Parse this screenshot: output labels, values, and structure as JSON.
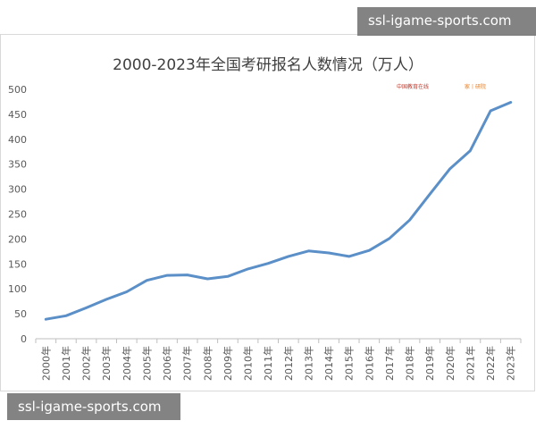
{
  "watermark": {
    "text": "ssl-igame-sports.com"
  },
  "logos": {
    "left_text": "中国教育在线",
    "right_text": "家丨研院"
  },
  "chart_data": {
    "type": "line",
    "title": "2000-2023年全国考研报名人数情况（万人）",
    "xlabel": "",
    "ylabel": "",
    "ylim": [
      0,
      500
    ],
    "yticks": [
      0,
      50,
      100,
      150,
      200,
      250,
      300,
      350,
      400,
      450,
      500
    ],
    "grid": false,
    "categories": [
      "2000年",
      "2001年",
      "2002年",
      "2003年",
      "2004年",
      "2005年",
      "2006年",
      "2007年",
      "2008年",
      "2009年",
      "2010年",
      "2011年",
      "2012年",
      "2013年",
      "2014年",
      "2015年",
      "2016年",
      "2017年",
      "2018年",
      "2019年",
      "2020年",
      "2021年",
      "2022年",
      "2023年"
    ],
    "series": [
      {
        "name": "",
        "color": "#5b8fc7",
        "values": [
          39,
          46,
          62,
          79,
          94,
          117,
          127,
          128,
          120,
          125,
          140,
          151,
          165,
          176,
          172,
          165,
          177,
          201,
          238,
          290,
          341,
          377,
          457,
          474
        ]
      }
    ]
  }
}
